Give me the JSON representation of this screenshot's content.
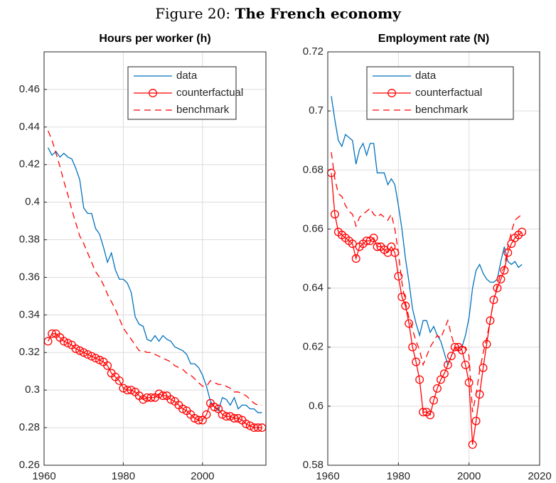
{
  "figure": {
    "label": "Figure 20:",
    "title": "The French economy"
  },
  "chart_data": [
    {
      "type": "line",
      "title": "Hours per worker (h)",
      "x": [
        1961,
        1962,
        1963,
        1964,
        1965,
        1966,
        1967,
        1968,
        1969,
        1970,
        1971,
        1972,
        1973,
        1974,
        1975,
        1976,
        1977,
        1978,
        1979,
        1980,
        1981,
        1982,
        1983,
        1984,
        1985,
        1986,
        1987,
        1988,
        1989,
        1990,
        1991,
        1992,
        1993,
        1994,
        1995,
        1996,
        1997,
        1998,
        1999,
        2000,
        2001,
        2002,
        2003,
        2004,
        2005,
        2006,
        2007,
        2008,
        2009,
        2010,
        2011,
        2012,
        2013,
        2014,
        2015
      ],
      "series": [
        {
          "name": "data",
          "color": "#0072bd",
          "linestyle": "solid",
          "values": [
            0.429,
            0.425,
            0.427,
            0.424,
            0.426,
            0.424,
            0.423,
            0.418,
            0.412,
            0.397,
            0.394,
            0.394,
            0.386,
            0.383,
            0.376,
            0.368,
            0.373,
            0.364,
            0.359,
            0.359,
            0.357,
            0.352,
            0.339,
            0.335,
            0.334,
            0.327,
            0.326,
            0.329,
            0.326,
            0.329,
            0.327,
            0.326,
            0.323,
            0.322,
            0.321,
            0.319,
            0.314,
            0.314,
            0.312,
            0.308,
            0.302,
            0.294,
            0.291,
            0.289,
            0.296,
            0.295,
            0.292,
            0.296,
            0.29,
            0.292,
            0.292,
            0.29,
            0.29,
            0.288,
            0.288
          ]
        },
        {
          "name": "counterfactual",
          "color": "#ff0000",
          "linestyle": "solid",
          "marker": "circle",
          "values": [
            0.326,
            0.33,
            0.33,
            0.328,
            0.326,
            0.325,
            0.324,
            0.322,
            0.321,
            0.32,
            0.319,
            0.318,
            0.317,
            0.316,
            0.315,
            0.313,
            0.309,
            0.307,
            0.305,
            0.301,
            0.3,
            0.3,
            0.299,
            0.297,
            0.295,
            0.296,
            0.296,
            0.296,
            0.298,
            0.297,
            0.297,
            0.295,
            0.294,
            0.292,
            0.29,
            0.289,
            0.287,
            0.285,
            0.284,
            0.284,
            0.287,
            0.293,
            0.291,
            0.29,
            0.287,
            0.286,
            0.286,
            0.285,
            0.285,
            0.284,
            0.282,
            0.281,
            0.28,
            0.28,
            0.28
          ]
        },
        {
          "name": "benchmark",
          "color": "#ff0000",
          "linestyle": "dashed",
          "values": [
            0.438,
            0.433,
            0.426,
            0.419,
            0.411,
            0.404,
            0.396,
            0.389,
            0.382,
            0.378,
            0.373,
            0.368,
            0.363,
            0.36,
            0.356,
            0.351,
            0.347,
            0.343,
            0.338,
            0.333,
            0.33,
            0.327,
            0.324,
            0.321,
            0.321,
            0.32,
            0.32,
            0.319,
            0.318,
            0.317,
            0.316,
            0.315,
            0.313,
            0.312,
            0.311,
            0.309,
            0.308,
            0.306,
            0.304,
            0.302,
            0.302,
            0.305,
            0.304,
            0.303,
            0.303,
            0.302,
            0.301,
            0.299,
            0.299,
            0.298,
            0.297,
            0.295,
            0.293,
            0.292,
            0.292
          ]
        }
      ],
      "xlim": [
        1960,
        2016
      ],
      "xticks": [
        1960,
        1980,
        2000
      ],
      "ylim": [
        0.26,
        0.48
      ],
      "yticks": [
        0.26,
        0.28,
        0.3,
        0.32,
        0.34,
        0.36,
        0.38,
        0.4,
        0.42,
        0.44,
        0.46
      ],
      "grid": true,
      "legend": "upper right"
    },
    {
      "type": "line",
      "title": "Employment rate (N)",
      "x": [
        1961,
        1962,
        1963,
        1964,
        1965,
        1966,
        1967,
        1968,
        1969,
        1970,
        1971,
        1972,
        1973,
        1974,
        1975,
        1976,
        1977,
        1978,
        1979,
        1980,
        1981,
        1982,
        1983,
        1984,
        1985,
        1986,
        1987,
        1988,
        1989,
        1990,
        1991,
        1992,
        1993,
        1994,
        1995,
        1996,
        1997,
        1998,
        1999,
        2000,
        2001,
        2002,
        2003,
        2004,
        2005,
        2006,
        2007,
        2008,
        2009,
        2010,
        2011,
        2012,
        2013,
        2014,
        2015
      ],
      "series": [
        {
          "name": "data",
          "color": "#0072bd",
          "linestyle": "solid",
          "values": [
            0.705,
            0.697,
            0.69,
            0.688,
            0.692,
            0.691,
            0.69,
            0.682,
            0.687,
            0.689,
            0.685,
            0.689,
            0.689,
            0.679,
            0.679,
            0.679,
            0.675,
            0.677,
            0.675,
            0.668,
            0.66,
            0.65,
            0.642,
            0.633,
            0.628,
            0.624,
            0.629,
            0.629,
            0.625,
            0.627,
            0.624,
            0.622,
            0.618,
            0.614,
            0.617,
            0.62,
            0.62,
            0.62,
            0.624,
            0.63,
            0.64,
            0.646,
            0.648,
            0.645,
            0.643,
            0.642,
            0.642,
            0.643,
            0.649,
            0.654,
            0.649,
            0.648,
            0.649,
            0.647,
            0.648
          ]
        },
        {
          "name": "counterfactual",
          "color": "#ff0000",
          "linestyle": "solid",
          "marker": "circle",
          "values": [
            0.679,
            0.665,
            0.659,
            0.658,
            0.657,
            0.656,
            0.655,
            0.65,
            0.654,
            0.655,
            0.656,
            0.656,
            0.657,
            0.654,
            0.654,
            0.653,
            0.652,
            0.654,
            0.652,
            0.644,
            0.637,
            0.634,
            0.628,
            0.62,
            0.615,
            0.609,
            0.598,
            0.598,
            0.597,
            0.602,
            0.606,
            0.609,
            0.611,
            0.614,
            0.617,
            0.62,
            0.62,
            0.619,
            0.614,
            0.608,
            0.587,
            0.595,
            0.604,
            0.613,
            0.621,
            0.629,
            0.636,
            0.64,
            0.643,
            0.646,
            0.652,
            0.655,
            0.657,
            0.658,
            0.659
          ]
        },
        {
          "name": "benchmark",
          "color": "#ff0000",
          "linestyle": "dashed",
          "values": [
            0.686,
            0.677,
            0.672,
            0.671,
            0.668,
            0.666,
            0.665,
            0.661,
            0.664,
            0.665,
            0.666,
            0.667,
            0.665,
            0.664,
            0.665,
            0.664,
            0.663,
            0.665,
            0.66,
            0.652,
            0.642,
            0.635,
            0.63,
            0.626,
            0.622,
            0.619,
            0.614,
            0.617,
            0.62,
            0.622,
            0.624,
            0.623,
            0.626,
            0.629,
            0.624,
            0.62,
            0.619,
            0.62,
            0.62,
            0.617,
            0.598,
            0.604,
            0.612,
            0.618,
            0.623,
            0.629,
            0.636,
            0.641,
            0.645,
            0.647,
            0.654,
            0.659,
            0.663,
            0.664,
            0.665
          ]
        }
      ],
      "xlim": [
        1960,
        2020
      ],
      "xticks": [
        1960,
        1980,
        2000,
        2020
      ],
      "ylim": [
        0.58,
        0.72
      ],
      "yticks": [
        0.58,
        0.6,
        0.62,
        0.64,
        0.66,
        0.68,
        0.7,
        0.72
      ],
      "grid": true,
      "legend": "upper right"
    }
  ]
}
